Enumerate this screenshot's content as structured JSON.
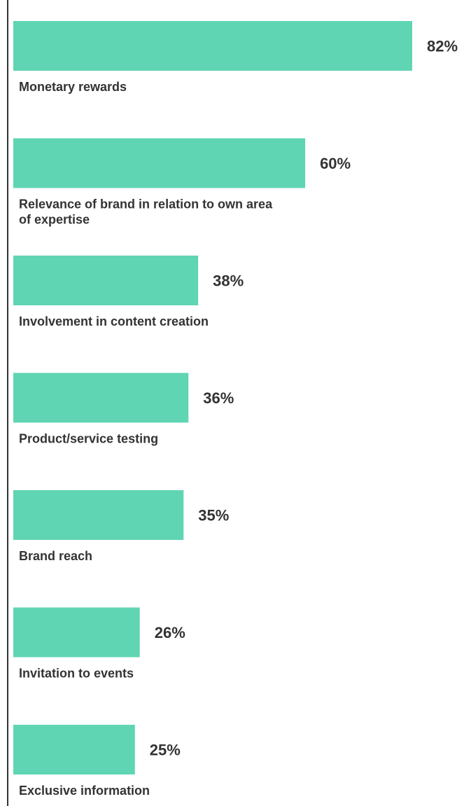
{
  "chart_data": {
    "type": "bar",
    "orientation": "horizontal",
    "categories": [
      [
        "Monetary rewards"
      ],
      [
        "Relevance of brand in relation to own area",
        "of expertise"
      ],
      [
        "Involvement in content creation"
      ],
      [
        "Product/service testing"
      ],
      [
        "Brand reach"
      ],
      [
        "Invitation to events"
      ],
      [
        "Exclusive information"
      ]
    ],
    "values": [
      82,
      60,
      38,
      36,
      35,
      26,
      25
    ],
    "value_labels": [
      "82%",
      "60%",
      "38%",
      "36%",
      "35%",
      "26%",
      "25%"
    ],
    "xlim": [
      0,
      82
    ],
    "grid": false,
    "legend": "none",
    "colors": {
      "bar": "#5fd5b3",
      "text": "#333333",
      "axis": "#333333"
    }
  }
}
